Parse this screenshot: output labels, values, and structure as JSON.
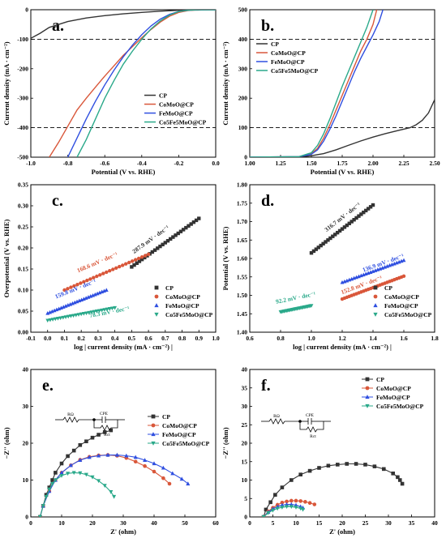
{
  "colors": {
    "CP": "#333333",
    "CoMoO@CP": "#d9573a",
    "FeMoO@CP": "#2f4fe0",
    "Co5Fe5MoO@CP": "#2aa98a"
  },
  "chart_data": [
    {
      "id": "a",
      "type": "line",
      "panel_label": "a.",
      "xlabel": "Potential (V vs. RHE)",
      "ylabel": "Current density (mA · cm⁻²)",
      "xlim": [
        -1.0,
        0.0
      ],
      "ylim": [
        -500,
        0
      ],
      "xticks": [
        "-1.0",
        "-0.8",
        "-0.6",
        "-0.4",
        "-0.2",
        "0.0"
      ],
      "yticks": [
        "0",
        "-100",
        "-200",
        "-300",
        "-400",
        "-500"
      ],
      "hlines": [
        -100,
        -400
      ],
      "legend": [
        "CP",
        "CoMoO@CP",
        "FeMoO@CP",
        "Co5Fe5MoO@CP"
      ],
      "legend_position": "right",
      "series": [
        {
          "name": "CP",
          "x": [
            -1.0,
            -0.95,
            -0.9,
            -0.8,
            -0.7,
            -0.6,
            -0.5,
            -0.4,
            -0.3,
            -0.2,
            -0.1,
            0.0
          ],
          "y": [
            -97,
            -80,
            -60,
            -40,
            -28,
            -20,
            -14,
            -9,
            -5,
            -2,
            -1,
            0
          ]
        },
        {
          "name": "CoMoO@CP",
          "x": [
            -0.9,
            -0.85,
            -0.8,
            -0.75,
            -0.7,
            -0.65,
            -0.6,
            -0.55,
            -0.5,
            -0.45,
            -0.4,
            -0.35,
            -0.3,
            -0.25,
            -0.2,
            -0.15,
            -0.1,
            0.0
          ],
          "y": [
            -500,
            -450,
            -395,
            -340,
            -300,
            -262,
            -225,
            -190,
            -155,
            -125,
            -95,
            -67,
            -42,
            -22,
            -9,
            -3,
            0,
            0
          ]
        },
        {
          "name": "FeMoO@CP",
          "x": [
            -0.8,
            -0.75,
            -0.7,
            -0.65,
            -0.6,
            -0.55,
            -0.5,
            -0.45,
            -0.4,
            -0.35,
            -0.3,
            -0.25,
            -0.2,
            -0.15,
            -0.1,
            0.0
          ],
          "y": [
            -500,
            -435,
            -370,
            -310,
            -255,
            -205,
            -160,
            -120,
            -85,
            -55,
            -32,
            -16,
            -6,
            -2,
            0,
            0
          ]
        },
        {
          "name": "Co5Fe5MoO@CP",
          "x": [
            -0.75,
            -0.7,
            -0.65,
            -0.6,
            -0.55,
            -0.5,
            -0.45,
            -0.4,
            -0.35,
            -0.3,
            -0.25,
            -0.2,
            -0.15,
            -0.1,
            0.0
          ],
          "y": [
            -500,
            -440,
            -370,
            -300,
            -240,
            -185,
            -140,
            -100,
            -65,
            -38,
            -18,
            -6,
            -2,
            0,
            0
          ]
        }
      ]
    },
    {
      "id": "b",
      "type": "line",
      "panel_label": "b.",
      "xlabel": "Potential (V vs. RHE)",
      "ylabel": "Current density (mA · cm⁻²)",
      "xlim": [
        1.0,
        2.5
      ],
      "ylim": [
        0,
        500
      ],
      "xticks": [
        "1.00",
        "1.25",
        "1.50",
        "1.75",
        "2.00",
        "2.25",
        "2.50"
      ],
      "yticks": [
        "0",
        "100",
        "200",
        "300",
        "400",
        "500"
      ],
      "hlines": [
        100,
        400
      ],
      "legend": [
        "CP",
        "CoMoO@CP",
        "FeMoO@CP",
        "Co5Fe5MoO@CP"
      ],
      "legend_position": "top-left",
      "series": [
        {
          "name": "CP",
          "x": [
            1.0,
            1.4,
            1.5,
            1.6,
            1.7,
            1.8,
            1.9,
            2.0,
            2.1,
            2.2,
            2.3,
            2.35,
            2.4,
            2.45,
            2.5
          ],
          "y": [
            0,
            1,
            5,
            12,
            25,
            40,
            55,
            68,
            80,
            90,
            100,
            110,
            125,
            150,
            195
          ]
        },
        {
          "name": "CoMoO@CP",
          "x": [
            1.0,
            1.4,
            1.5,
            1.55,
            1.6,
            1.65,
            1.7,
            1.75,
            1.8,
            1.85,
            1.9,
            1.95,
            2.0,
            2.03
          ],
          "y": [
            0,
            2,
            12,
            30,
            65,
            110,
            160,
            210,
            260,
            310,
            360,
            400,
            450,
            500
          ]
        },
        {
          "name": "FeMoO@CP",
          "x": [
            1.0,
            1.4,
            1.5,
            1.55,
            1.6,
            1.65,
            1.7,
            1.75,
            1.8,
            1.85,
            1.9,
            1.95,
            2.0,
            2.05,
            2.08
          ],
          "y": [
            0,
            2,
            10,
            25,
            55,
            95,
            140,
            190,
            240,
            290,
            335,
            375,
            415,
            460,
            500
          ]
        },
        {
          "name": "Co5Fe5MoO@CP",
          "x": [
            1.0,
            1.4,
            1.5,
            1.55,
            1.6,
            1.65,
            1.7,
            1.75,
            1.8,
            1.85,
            1.9,
            1.95,
            2.0
          ],
          "y": [
            0,
            2,
            15,
            40,
            80,
            130,
            185,
            240,
            290,
            340,
            390,
            440,
            500
          ]
        }
      ]
    },
    {
      "id": "c",
      "type": "scatter",
      "panel_label": "c.",
      "xlabel": "log | current density (mA · cm⁻²) |",
      "ylabel": "Overpotential (V vs. RHE)",
      "xlim": [
        -0.1,
        1.0
      ],
      "ylim": [
        0.0,
        0.35
      ],
      "xticks": [
        "-0.1",
        "0.0",
        "0.1",
        "0.2",
        "0.3",
        "0.4",
        "0.5",
        "0.6",
        "0.7",
        "0.8",
        "0.9",
        "1.0"
      ],
      "yticks": [
        "0.00",
        "0.05",
        "0.10",
        "0.15",
        "0.20",
        "0.25",
        "0.30",
        "0.35"
      ],
      "legend": [
        "CP",
        "CoMoO@CP",
        "FeMoO@CP",
        "Co5Fe5MoO@CP"
      ],
      "legend_position": "bottom-right",
      "series": [
        {
          "name": "CP",
          "marker": "square",
          "x_range": [
            0.5,
            0.9
          ],
          "y_range": [
            0.155,
            0.27
          ],
          "tafel_label": "287.9 mV · dec⁻¹",
          "label_x": 0.62,
          "label_y": 0.205
        },
        {
          "name": "CoMoO@CP",
          "marker": "circle",
          "x_range": [
            0.1,
            0.6
          ],
          "y_range": [
            0.1,
            0.185
          ],
          "tafel_label": "168.6 mV · dec⁻¹",
          "label_x": 0.3,
          "label_y": 0.15
        },
        {
          "name": "FeMoO@CP",
          "marker": "triangle",
          "x_range": [
            0.0,
            0.35
          ],
          "y_range": [
            0.045,
            0.1
          ],
          "tafel_label": "159.8 mV · dec⁻¹",
          "label_x": 0.17,
          "label_y": 0.087
        },
        {
          "name": "Co5Fe5MoO@CP",
          "marker": "triangle-down",
          "x_range": [
            0.0,
            0.4
          ],
          "y_range": [
            0.028,
            0.058
          ],
          "tafel_label": "78.3 mV · dec⁻¹",
          "label_x": 0.37,
          "label_y": 0.032
        }
      ]
    },
    {
      "id": "d",
      "type": "scatter",
      "panel_label": "d.",
      "xlabel": "log | current density (mA · cm⁻²) |",
      "ylabel": "Potential (V vs. RHE)",
      "xlim": [
        0.6,
        1.8
      ],
      "ylim": [
        1.4,
        1.8
      ],
      "xticks": [
        "0.6",
        "0.8",
        "1.0",
        "1.2",
        "1.4",
        "1.6",
        "1.8"
      ],
      "yticks": [
        "1.40",
        "1.45",
        "1.50",
        "1.55",
        "1.60",
        "1.65",
        "1.70",
        "1.75",
        "1.80"
      ],
      "legend": [
        "CP",
        "CoMoO@CP",
        "FeMoO@CP",
        "Co5Fe5MoO@CP"
      ],
      "legend_position": "bottom-right",
      "series": [
        {
          "name": "CP",
          "marker": "square",
          "x_range": [
            1.0,
            1.4
          ],
          "y_range": [
            1.615,
            1.745
          ],
          "tafel_label": "316.7 mV · dec⁻¹",
          "label_x": 1.21,
          "label_y": 1.695
        },
        {
          "name": "CoMoO@CP",
          "marker": "circle",
          "x_range": [
            1.2,
            1.6
          ],
          "y_range": [
            1.49,
            1.552
          ],
          "tafel_label": "152.8 mV · dec⁻¹",
          "label_x": 1.33,
          "label_y": 1.51
        },
        {
          "name": "FeMoO@CP",
          "marker": "triangle",
          "x_range": [
            1.2,
            1.6
          ],
          "y_range": [
            1.535,
            1.595
          ],
          "tafel_label": "136.9 mV · dec⁻¹",
          "label_x": 1.47,
          "label_y": 1.57
        },
        {
          "name": "Co5Fe5MoO@CP",
          "marker": "triangle-down",
          "x_range": [
            0.8,
            1.0
          ],
          "y_range": [
            1.455,
            1.472
          ],
          "tafel_label": "92.2 mV · dec⁻¹",
          "label_x": 0.9,
          "label_y": 1.475
        }
      ]
    },
    {
      "id": "e",
      "type": "scatter",
      "panel_label": "e.",
      "xlabel": "Z' (ohm)",
      "ylabel": "−Z'' (ohm)",
      "xlim": [
        0,
        60
      ],
      "ylim": [
        0,
        40
      ],
      "xticks": [
        "0",
        "10",
        "20",
        "30",
        "40",
        "50",
        "60"
      ],
      "yticks": [
        "0",
        "10",
        "20",
        "30",
        "40"
      ],
      "legend": [
        "CP",
        "CoMoO@CP",
        "FeMoO@CP",
        "Co5Fe5MoO@CP"
      ],
      "legend_position": "right",
      "circuit_labels": [
        "RΩ",
        "CPE",
        "Rct"
      ],
      "series": [
        {
          "name": "CP",
          "marker": "square",
          "x": [
            3,
            4,
            5,
            6,
            7,
            8,
            10,
            12,
            14,
            16,
            18,
            20,
            22,
            24,
            26
          ],
          "y": [
            0,
            3,
            6,
            8,
            10,
            12,
            14.5,
            16.5,
            18,
            19.5,
            20.5,
            21.5,
            22.3,
            23,
            23.5
          ]
        },
        {
          "name": "CoMoO@CP",
          "marker": "circle",
          "x": [
            3,
            4,
            6,
            8,
            10,
            13,
            16,
            19,
            22,
            25,
            28,
            31,
            34,
            37,
            40,
            43,
            45
          ],
          "y": [
            0,
            3,
            7,
            10,
            12,
            14,
            15.5,
            16.3,
            16.7,
            16.8,
            16.6,
            16,
            15,
            13.8,
            12.3,
            10.5,
            9
          ]
        },
        {
          "name": "FeMoO@CP",
          "marker": "triangle",
          "x": [
            3,
            4,
            6,
            8,
            10,
            13,
            16,
            19,
            22,
            25,
            28,
            31,
            34,
            37,
            40,
            43,
            46,
            49,
            51
          ],
          "y": [
            0,
            3,
            7,
            10,
            12,
            14,
            15.4,
            16.2,
            16.6,
            16.8,
            16.8,
            16.6,
            16.2,
            15.4,
            14.5,
            13.3,
            11.8,
            10.3,
            9
          ]
        },
        {
          "name": "Co5Fe5MoO@CP",
          "marker": "triangle-down",
          "x": [
            3,
            4,
            5,
            6,
            7,
            8,
            10,
            12,
            14,
            16,
            18,
            20,
            22,
            24,
            26,
            27
          ],
          "y": [
            0,
            3,
            5.5,
            7.5,
            9,
            10,
            11.2,
            11.8,
            12,
            11.9,
            11.5,
            10.8,
            9.8,
            8.5,
            6.8,
            5.5
          ]
        }
      ]
    },
    {
      "id": "f",
      "type": "scatter",
      "panel_label": "f.",
      "xlabel": "Z' (ohm)",
      "ylabel": "−Z'' (ohm)",
      "xlim": [
        0,
        40
      ],
      "ylim": [
        0,
        40
      ],
      "xticks": [
        "0",
        "5",
        "10",
        "15",
        "20",
        "25",
        "30",
        "35",
        "40"
      ],
      "yticks": [
        "0",
        "5",
        "10",
        "15",
        "20",
        "25",
        "30",
        "35",
        "40"
      ],
      "legend": [
        "CP",
        "CoMoO@CP",
        "FeMoO@CP",
        "Co5Fe5MoO@CP"
      ],
      "legend_position": "top-right",
      "circuit_labels": [
        "RΩ",
        "CPE",
        "Rct"
      ],
      "series": [
        {
          "name": "CP",
          "marker": "square",
          "x": [
            3,
            3.5,
            4.5,
            5.5,
            7,
            9,
            11,
            13,
            15,
            17,
            19,
            21,
            23,
            25,
            27,
            29,
            31,
            32,
            32.5,
            33
          ],
          "y": [
            0,
            2,
            4,
            6,
            8,
            10,
            11.5,
            12.5,
            13.3,
            13.9,
            14.2,
            14.4,
            14.4,
            14.2,
            13.7,
            13,
            11.8,
            10.8,
            10,
            9
          ]
        },
        {
          "name": "CoMoO@CP",
          "marker": "circle",
          "x": [
            3,
            4,
            5,
            6,
            7,
            8,
            9,
            10,
            11,
            12,
            13,
            14
          ],
          "y": [
            0,
            1.5,
            2.5,
            3.3,
            3.9,
            4.2,
            4.4,
            4.4,
            4.3,
            4.1,
            3.8,
            3.4
          ]
        },
        {
          "name": "FeMoO@CP",
          "marker": "triangle",
          "x": [
            3,
            4,
            5,
            6,
            7,
            8,
            9,
            10,
            11,
            11.5
          ],
          "y": [
            0,
            1.3,
            2.2,
            2.8,
            3.2,
            3.4,
            3.4,
            3.2,
            2.8,
            2.5
          ]
        },
        {
          "name": "Co5Fe5MoO@CP",
          "marker": "triangle-down",
          "x": [
            3,
            4,
            5,
            6,
            7,
            8,
            9,
            10,
            11,
            11.5
          ],
          "y": [
            0,
            1.1,
            1.8,
            2.3,
            2.6,
            2.8,
            2.8,
            2.6,
            2.3,
            2
          ]
        }
      ]
    }
  ]
}
